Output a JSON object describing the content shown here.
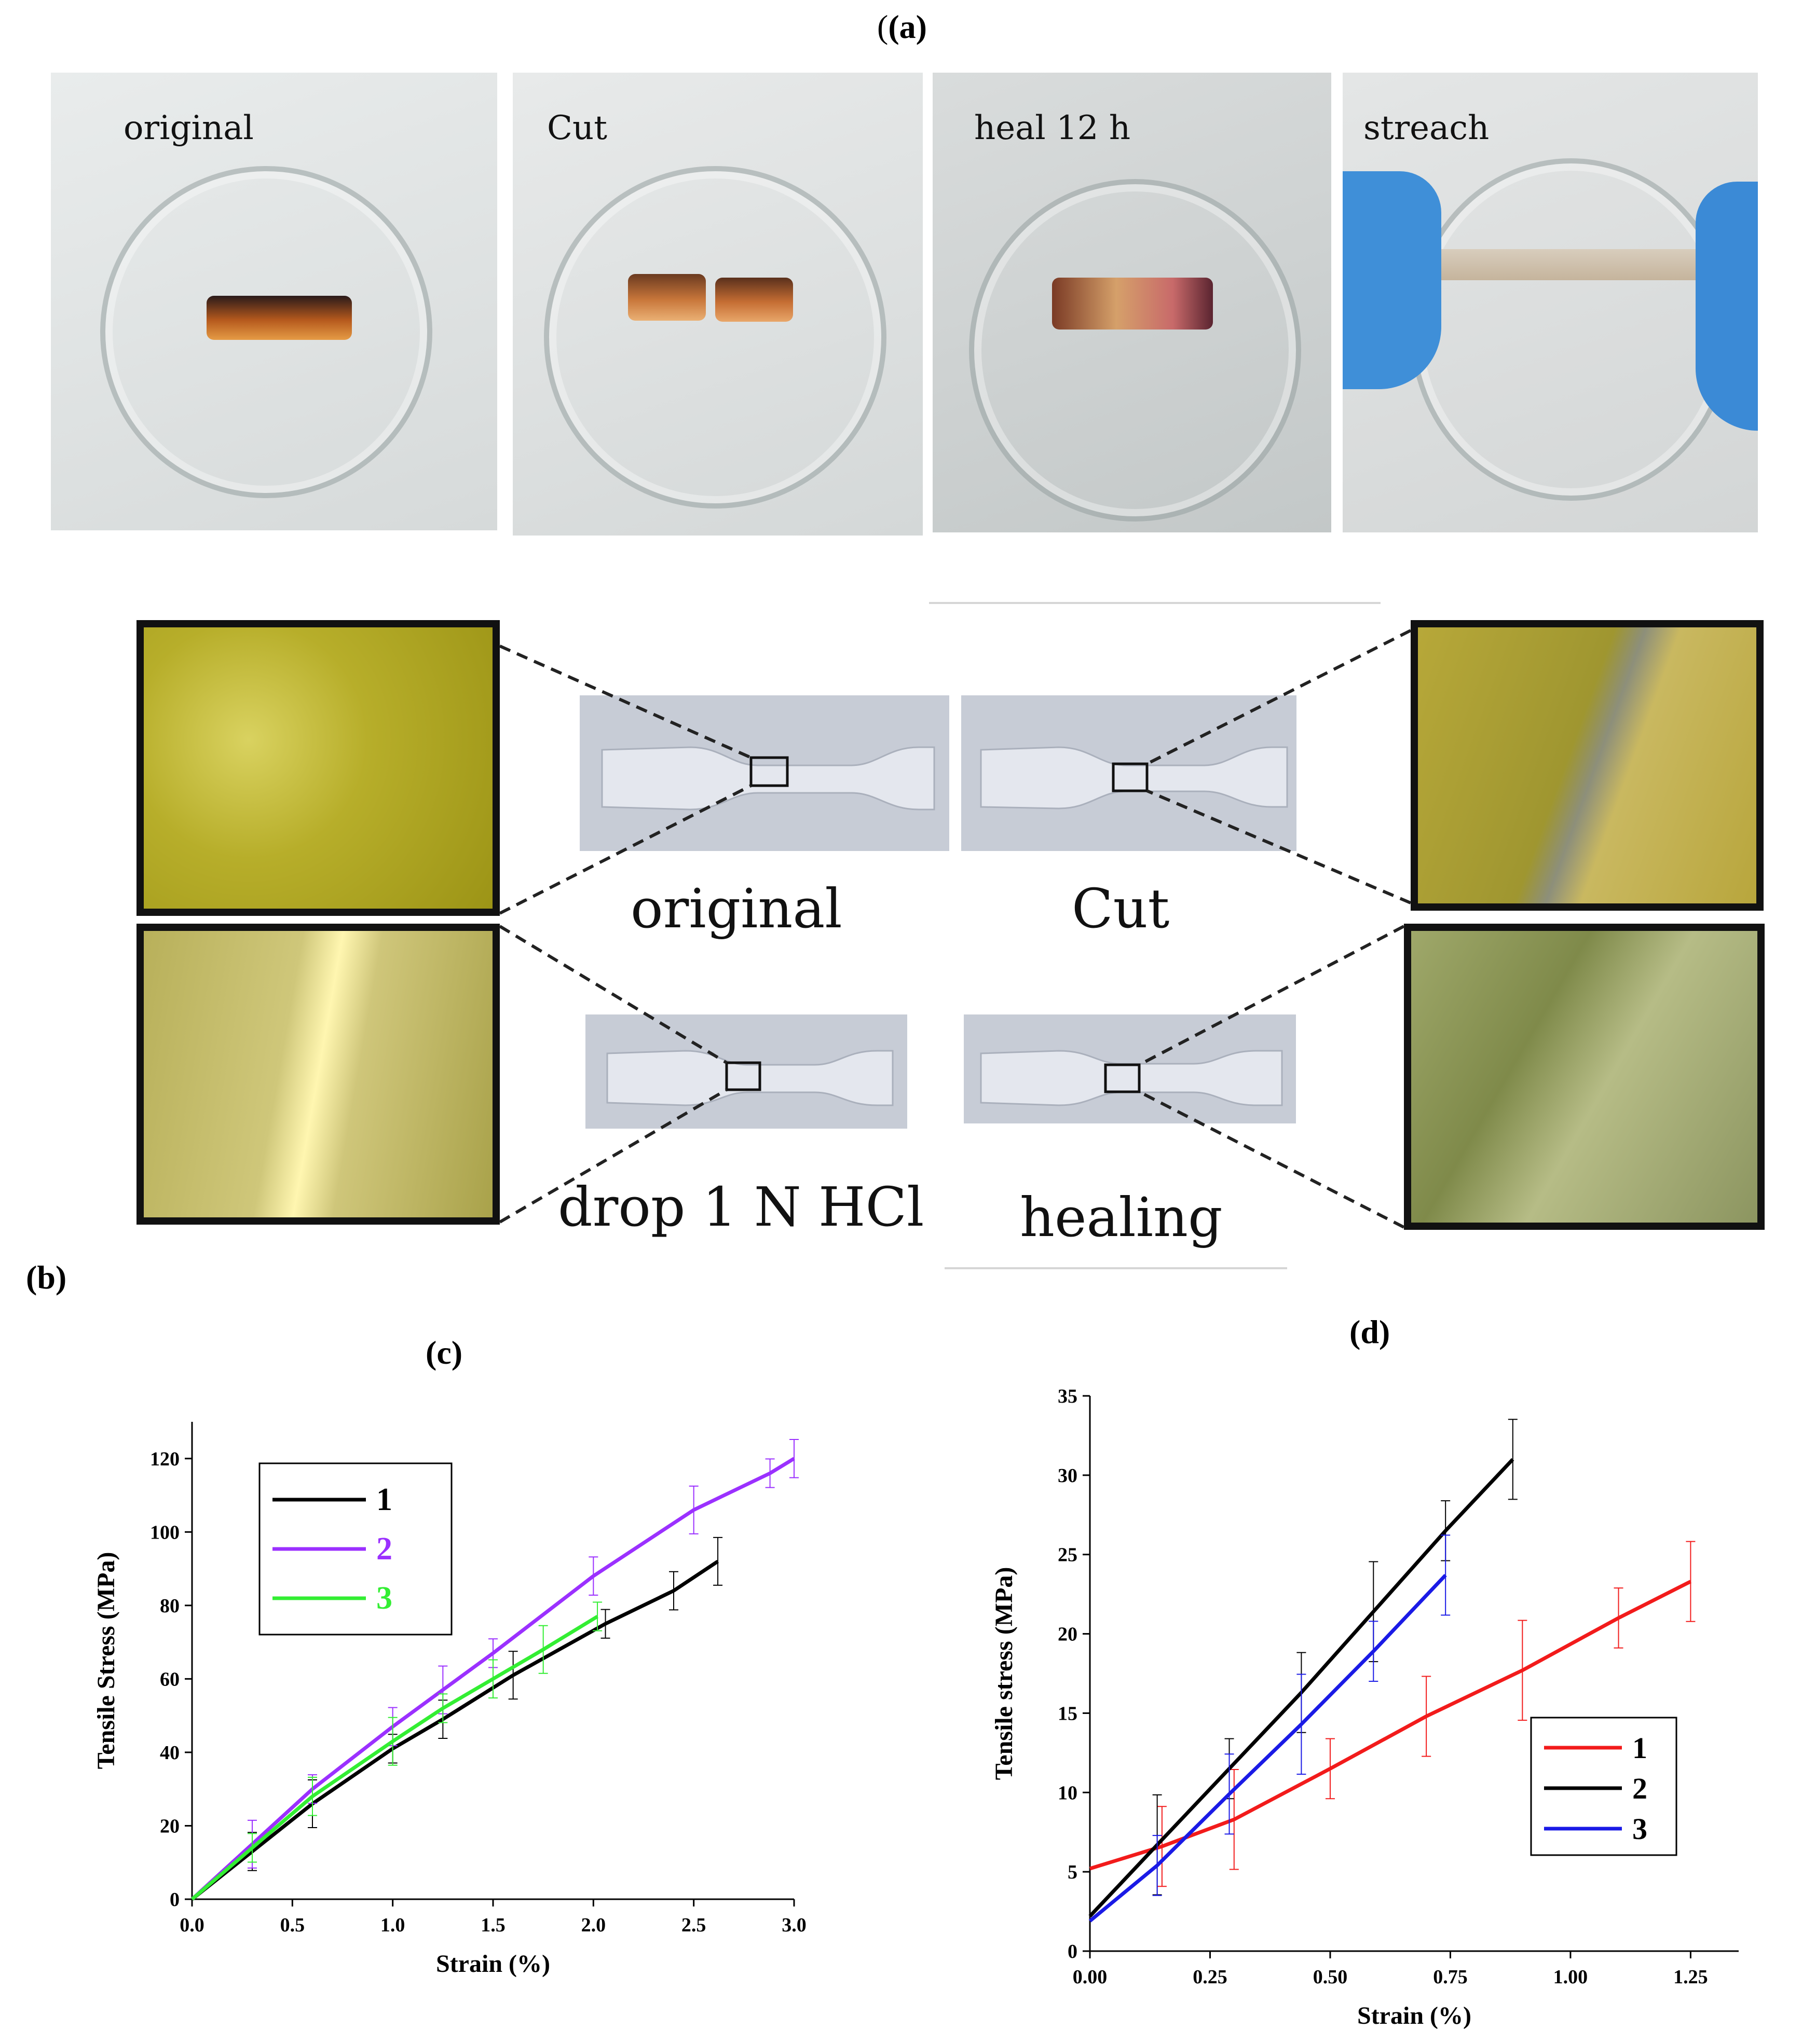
{
  "panel_labels": {
    "a": "(a)",
    "b": "(b)",
    "c": "(c)",
    "d": "(d)"
  },
  "photos_a": [
    {
      "caption": "original"
    },
    {
      "caption": "Cut"
    },
    {
      "caption": "heal  12 h"
    },
    {
      "caption": "streach"
    }
  ],
  "panel_b": {
    "label_original": "original",
    "label_cut": "Cut",
    "label_drop": "drop 1 N HCl",
    "label_healing": "healing"
  },
  "colors": {
    "black": "#000000",
    "purple": "#9B30FF",
    "green": "#33EE33",
    "red": "#F21B1B",
    "blue": "#1A1AE6"
  },
  "chart_data": [
    {
      "id": "c",
      "type": "line",
      "title": "(c)",
      "xlabel": "Strain (%)",
      "ylabel": "Tensile Stress (MPa)",
      "xlim": [
        0,
        3.0
      ],
      "ylim": [
        0,
        130
      ],
      "xticks": [
        "0.0",
        "0.5",
        "1.0",
        "1.5",
        "2.0",
        "2.5",
        "3.0"
      ],
      "yticks": [
        "0",
        "20",
        "40",
        "60",
        "80",
        "100",
        "120"
      ],
      "legend": "top-left",
      "series": [
        {
          "name": "1",
          "color": "#000000",
          "x": [
            0,
            0.3,
            0.6,
            1.0,
            1.25,
            1.6,
            2.06,
            2.4,
            2.62
          ],
          "y": [
            0,
            13,
            26,
            41,
            49,
            61,
            75,
            84,
            92
          ]
        },
        {
          "name": "2",
          "color": "#9B30FF",
          "x": [
            0,
            0.3,
            0.6,
            1.0,
            1.25,
            1.5,
            2.0,
            2.5,
            2.88,
            3.0
          ],
          "y": [
            0,
            15,
            30,
            47,
            57,
            67,
            88,
            106,
            116,
            120
          ]
        },
        {
          "name": "3",
          "color": "#33EE33",
          "x": [
            0,
            0.3,
            0.6,
            1.0,
            1.25,
            1.5,
            1.75,
            2.02
          ],
          "y": [
            0,
            14,
            28,
            43,
            52,
            60,
            68,
            77
          ]
        }
      ]
    },
    {
      "id": "d",
      "type": "line",
      "title": "(d)",
      "xlabel": "Strain  (%)",
      "ylabel": "Tensile stress (MPa)",
      "xlim": [
        0,
        1.35
      ],
      "ylim": [
        0,
        35
      ],
      "xticks": [
        "0.00",
        "0.25",
        "0.50",
        "0.75",
        "1.00",
        "1.25"
      ],
      "yticks": [
        "0",
        "5",
        "10",
        "15",
        "20",
        "25",
        "30",
        "35"
      ],
      "legend": "bottom-right",
      "series": [
        {
          "name": "1",
          "color": "#F21B1B",
          "x": [
            0,
            0.15,
            0.3,
            0.5,
            0.7,
            0.9,
            1.1,
            1.25
          ],
          "y": [
            5.2,
            6.6,
            8.3,
            11.5,
            14.8,
            17.7,
            21.0,
            23.3
          ]
        },
        {
          "name": "2",
          "color": "#000000",
          "x": [
            0,
            0.14,
            0.29,
            0.44,
            0.59,
            0.74,
            0.88
          ],
          "y": [
            2.2,
            6.7,
            11.5,
            16.3,
            21.4,
            26.5,
            31.0
          ]
        },
        {
          "name": "3",
          "color": "#1A1AE6",
          "x": [
            0,
            0.14,
            0.29,
            0.44,
            0.59,
            0.74
          ],
          "y": [
            1.9,
            5.4,
            9.9,
            14.3,
            18.9,
            23.7
          ]
        }
      ]
    }
  ]
}
